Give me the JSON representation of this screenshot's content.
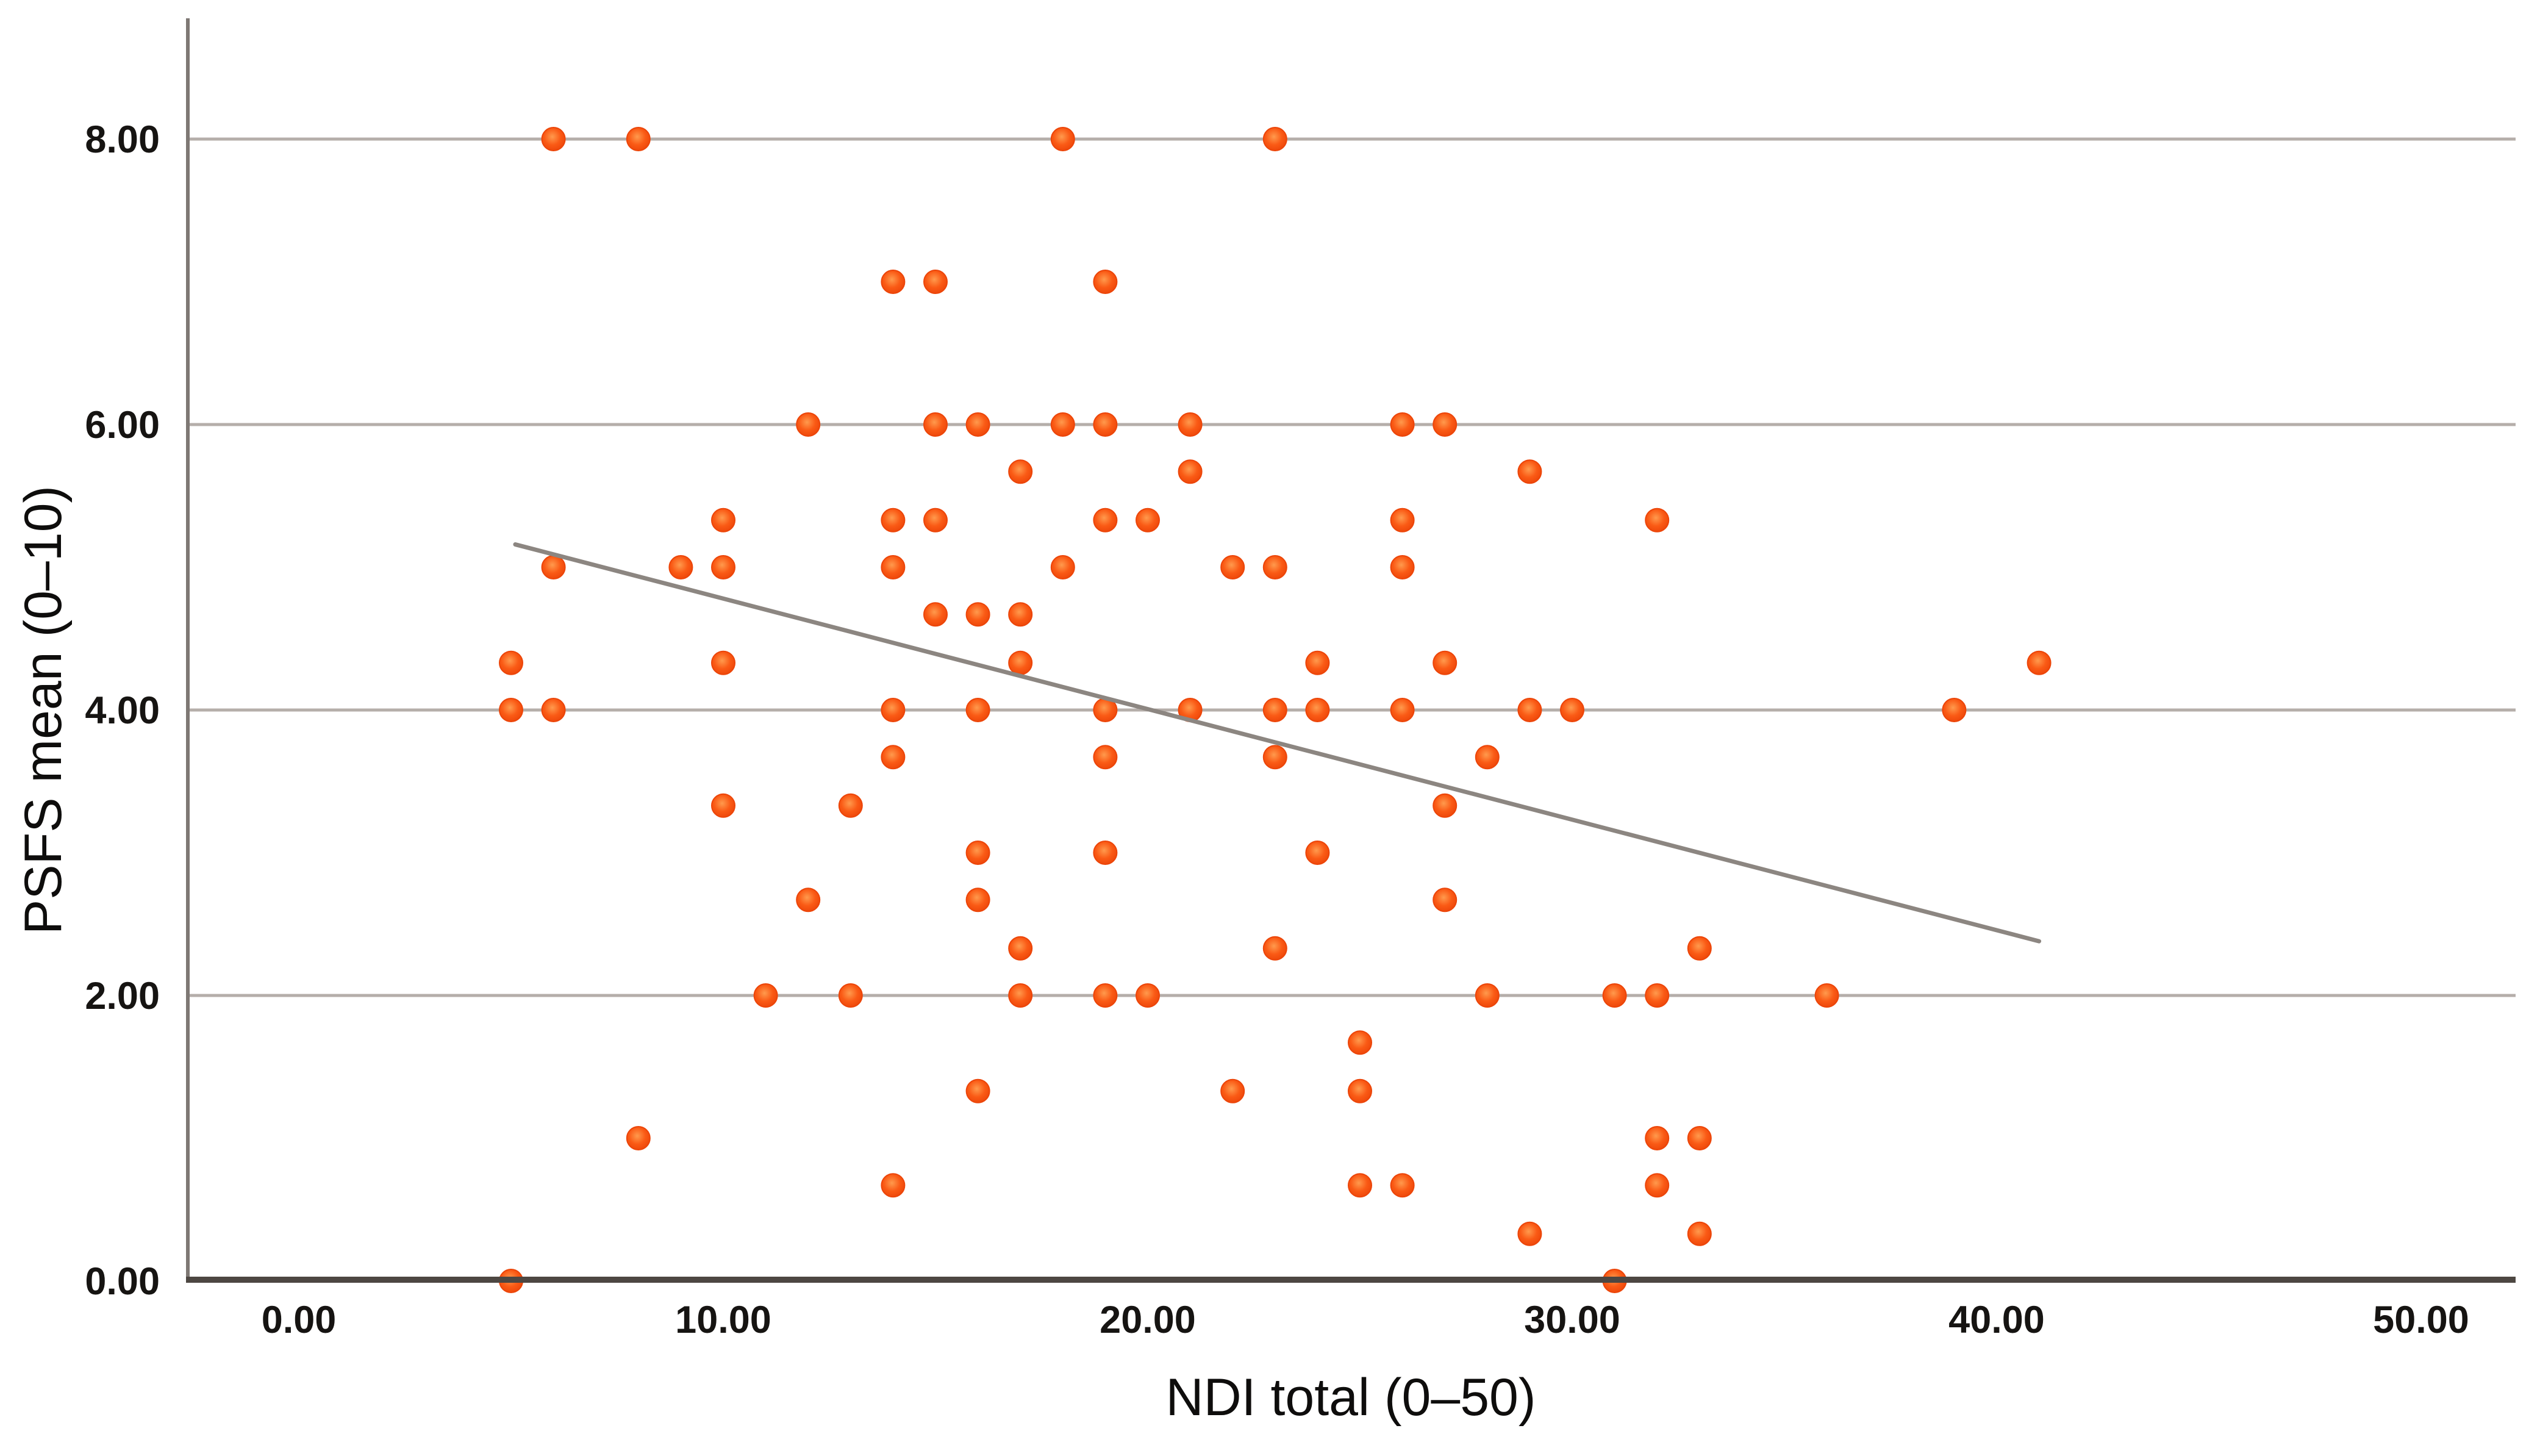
{
  "chart_data": {
    "type": "scatter",
    "title": "",
    "xlabel": "NDI total (0–50)",
    "ylabel": "PSFS mean (0–10)",
    "xlim": [
      -2.6,
      52.2
    ],
    "ylim": [
      0,
      8.9
    ],
    "grid": "horizontal-only",
    "legend": "none",
    "xticks": {
      "values": [
        0,
        10,
        20,
        30,
        40,
        50
      ],
      "labels": [
        "0.00",
        "10.00",
        "20.00",
        "30.00",
        "40.00",
        "50.00"
      ]
    },
    "yticks": {
      "values": [
        0,
        2,
        4,
        6,
        8
      ],
      "labels": [
        "0.00",
        "2.00",
        "4.00",
        "6.00",
        "8.00"
      ]
    },
    "points": [
      [
        6,
        8
      ],
      [
        8,
        8
      ],
      [
        18,
        8
      ],
      [
        23,
        8
      ],
      [
        14,
        7
      ],
      [
        15,
        7
      ],
      [
        19,
        7
      ],
      [
        12,
        6
      ],
      [
        15,
        6
      ],
      [
        16,
        6
      ],
      [
        18,
        6
      ],
      [
        19,
        6
      ],
      [
        21,
        6
      ],
      [
        26,
        6
      ],
      [
        27,
        6
      ],
      [
        17,
        5.67
      ],
      [
        21,
        5.67
      ],
      [
        29,
        5.67
      ],
      [
        10,
        5.33
      ],
      [
        14,
        5.33
      ],
      [
        15,
        5.33
      ],
      [
        19,
        5.33
      ],
      [
        20,
        5.33
      ],
      [
        26,
        5.33
      ],
      [
        32,
        5.33
      ],
      [
        6,
        5
      ],
      [
        9,
        5
      ],
      [
        10,
        5
      ],
      [
        14,
        5
      ],
      [
        18,
        5
      ],
      [
        22,
        5
      ],
      [
        23,
        5
      ],
      [
        26,
        5
      ],
      [
        15,
        4.67
      ],
      [
        16,
        4.67
      ],
      [
        17,
        4.67
      ],
      [
        5,
        4.33
      ],
      [
        10,
        4.33
      ],
      [
        17,
        4.33
      ],
      [
        24,
        4.33
      ],
      [
        27,
        4.33
      ],
      [
        41,
        4.33
      ],
      [
        5,
        4
      ],
      [
        6,
        4
      ],
      [
        14,
        4
      ],
      [
        16,
        4
      ],
      [
        19,
        4
      ],
      [
        21,
        4
      ],
      [
        23,
        4
      ],
      [
        24,
        4
      ],
      [
        26,
        4
      ],
      [
        29,
        4
      ],
      [
        30,
        4
      ],
      [
        39,
        4
      ],
      [
        14,
        3.67
      ],
      [
        19,
        3.67
      ],
      [
        23,
        3.67
      ],
      [
        28,
        3.67
      ],
      [
        10,
        3.33
      ],
      [
        13,
        3.33
      ],
      [
        27,
        3.33
      ],
      [
        16,
        3
      ],
      [
        19,
        3
      ],
      [
        24,
        3
      ],
      [
        12,
        2.67
      ],
      [
        16,
        2.67
      ],
      [
        27,
        2.67
      ],
      [
        17,
        2.33
      ],
      [
        23,
        2.33
      ],
      [
        33,
        2.33
      ],
      [
        11,
        2
      ],
      [
        13,
        2
      ],
      [
        17,
        2
      ],
      [
        19,
        2
      ],
      [
        20,
        2
      ],
      [
        28,
        2
      ],
      [
        31,
        2
      ],
      [
        32,
        2
      ],
      [
        36,
        2
      ],
      [
        25,
        1.67
      ],
      [
        16,
        1.33
      ],
      [
        22,
        1.33
      ],
      [
        25,
        1.33
      ],
      [
        8,
        1
      ],
      [
        32,
        1
      ],
      [
        33,
        1
      ],
      [
        14,
        0.67
      ],
      [
        25,
        0.67
      ],
      [
        26,
        0.67
      ],
      [
        32,
        0.67
      ],
      [
        29,
        0.33
      ],
      [
        33,
        0.33
      ],
      [
        5,
        0
      ],
      [
        31,
        0
      ]
    ],
    "trend_line": {
      "x1": 5.1,
      "y1": 5.16,
      "x2": 41.0,
      "y2": 2.38
    },
    "colors": {
      "point_center": "#ff9a4d",
      "point_mid": "#fa5a15",
      "point_edge": "#ec4509",
      "trend": "#8c8681",
      "gridline": "#b5aeaa",
      "x_axis": "#4d4742",
      "y_axis": "#7e7874",
      "label": "#161412",
      "background": "#ffffff"
    }
  }
}
